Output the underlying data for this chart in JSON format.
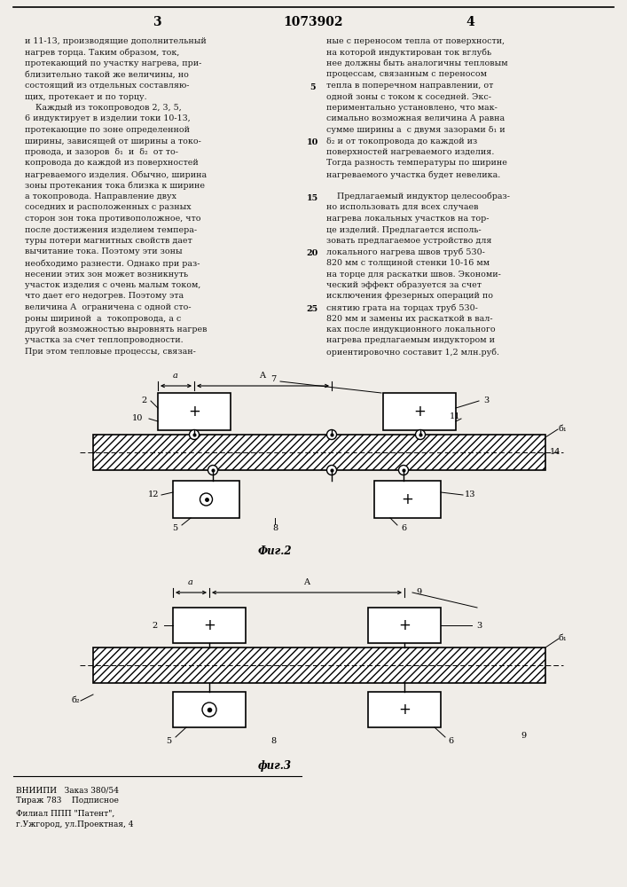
{
  "page_width": 7.07,
  "page_height": 10.0,
  "bg_color": "#f0ede8",
  "text_color": "#1a1a1a",
  "header": {
    "left_num": "3",
    "center_num": "1073902",
    "right_num": "4"
  },
  "left_col_text": [
    "и 11-13, производящие дополнительный",
    "нагрев торца. Таким образом, ток,",
    "протекающий по участку нагрева, при-",
    "близительно такой же величины, но",
    "состоящий из отдельных составляю-",
    "щих, протекает и по торцу.",
    "    Каждый из токопроводов 2, 3, 5,",
    "6 индуктирует в изделии токи 10-13,",
    "протекающие по зоне определенной",
    "ширины, зависящей от ширины а токо-",
    "провода, и зазоров  δ₁  и  δ₂  от то-",
    "копровода до каждой из поверхностей",
    "нагреваемого изделия. Обычно, ширина",
    "зоны протекания тока близка к ширине",
    "а токопровода. Направление двух",
    "соседних и расположенных с разных",
    "сторон зон тока противоположное, что",
    "после достижения изделием темпера-",
    "туры потери магнитных свойств дает",
    "вычитание тока. Поэтому эти зоны",
    "необходимо разнести. Однако при раз-",
    "несении этих зон может возникнуть",
    "участок изделия с очень малым током,",
    "что дает его недогрев. Поэтому эта",
    "величина А  ограничена с одной сто-",
    "роны шириной  а  токопровода, а с",
    "другой возможностью выровнять нагрев",
    "участка за счет теплопроводности.",
    "При этом тепловые процессы, связан-"
  ],
  "right_col_text": [
    "ные с переносом тепла от поверхности,",
    "на которой индуктирован ток вглубь",
    "нее должны быть аналогичны тепловым",
    "процессам, связанным с переносом",
    "тепла в поперечном направлении, от",
    "одной зоны с током к соседней. Экс-",
    "периментально установлено, что мак-",
    "симально возможная величина А равна",
    "сумме ширины а  с двумя зазорами δ₁ и",
    "δ₂ и от токопровода до каждой из",
    "поверхностей нагреваемого изделия.",
    "Тогда разность температуры по ширине",
    "нагреваемого участка будет невелика.",
    "",
    "    Предлагаемый индуктор целесообраз-",
    "но использовать для всех случаев",
    "нагрева локальных участков на тор-",
    "це изделий. Предлагается исполь-",
    "зовать предлагаемое устройство для",
    "локального нагрева швов труб 530-",
    "820 мм с толщиной стенки 10-16 мм",
    "на торце для раскатки швов. Экономи-",
    "ческий эффект образуется за счет",
    "исключения фрезерных операций по",
    "снятию грата на торцах труб 530-",
    "820 мм и замены их раскаткой в вал-",
    "ках после индукционного локального",
    "нагрева предлагаемым индуктором и",
    "ориентировочно составит 1,2 млн.руб."
  ],
  "fig2_label": "Фиг.2",
  "fig3_label": "фиг.3",
  "footer_left1": "ВНИИПИ   Заказ 380/54",
  "footer_left2": "Тираж 783    Подписное",
  "footer_left3": "Филиал ППП \"Патент\",",
  "footer_left4": "г.Ужгород, ул.Проектная, 4"
}
